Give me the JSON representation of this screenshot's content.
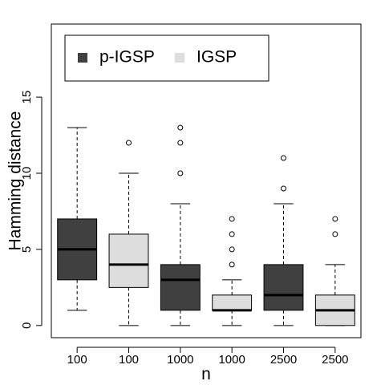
{
  "chart_data": {
    "type": "boxplot",
    "title": "",
    "xlabel": "n",
    "ylabel": "Hamming distance",
    "ylim": [
      -0.8,
      19.8
    ],
    "yticks": [
      0,
      5,
      10,
      15
    ],
    "grid": false,
    "legend": {
      "placement": "top-left",
      "entries": [
        {
          "label": "p-IGSP",
          "color": "#404040"
        },
        {
          "label": "IGSP",
          "color": "#dddddd"
        }
      ]
    },
    "categories": [
      "100",
      "100",
      "1000",
      "1000",
      "2500",
      "2500"
    ],
    "boxes": [
      {
        "label": "100",
        "series": "p-IGSP",
        "color": "#404040",
        "whisker_low": 1,
        "q1": 3,
        "median": 5,
        "q3": 7,
        "whisker_high": 13,
        "outliers": []
      },
      {
        "label": "100",
        "series": "IGSP",
        "color": "#dddddd",
        "whisker_low": 0,
        "q1": 2.5,
        "median": 4,
        "q3": 6,
        "whisker_high": 10,
        "outliers": [
          12
        ]
      },
      {
        "label": "1000",
        "series": "p-IGSP",
        "color": "#404040",
        "whisker_low": 0,
        "q1": 1,
        "median": 3,
        "q3": 4,
        "whisker_high": 8,
        "outliers": [
          10,
          12,
          13
        ]
      },
      {
        "label": "1000",
        "series": "IGSP",
        "color": "#dddddd",
        "whisker_low": 0,
        "q1": 1,
        "median": 1,
        "q3": 2,
        "whisker_high": 3,
        "outliers": [
          4,
          5,
          6,
          7
        ]
      },
      {
        "label": "2500",
        "series": "p-IGSP",
        "color": "#404040",
        "whisker_low": 0,
        "q1": 1,
        "median": 2,
        "q3": 4,
        "whisker_high": 8,
        "outliers": [
          9,
          11
        ]
      },
      {
        "label": "2500",
        "series": "IGSP",
        "color": "#dddddd",
        "whisker_low": 0,
        "q1": 0,
        "median": 1,
        "q3": 2,
        "whisker_high": 4,
        "outliers": [
          6,
          7
        ]
      }
    ]
  }
}
